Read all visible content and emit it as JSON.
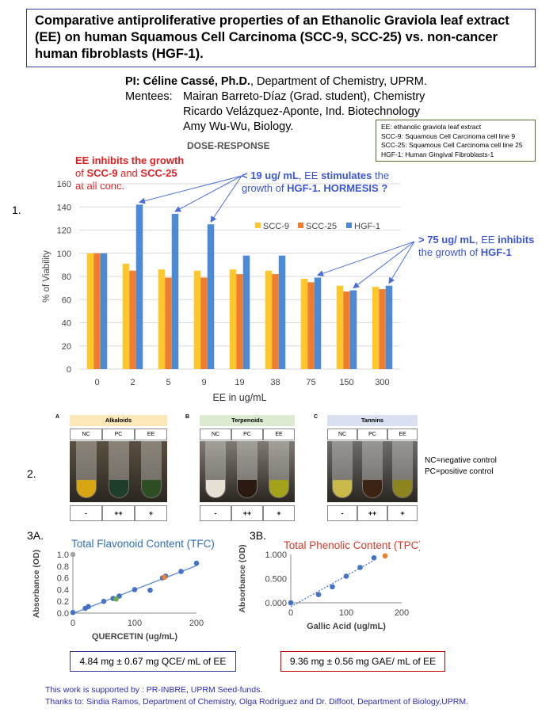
{
  "title": "Comparative antiproliferative properties of an Ethanolic Graviola leaf extract (EE) on human Squamous Cell Carcinoma (SCC-9, SCC-25) vs. non-cancer human fibroblasts (HGF-1).",
  "pi": {
    "label": "PI: Céline Cassé, Ph.D.",
    "dept": ", Department of Chemistry, UPRM.",
    "mentees_label": "Mentees:",
    "mentees": [
      "Mairan Barreto-Díaz (Grad. student), Chemistry",
      "Ricardo Velázquez-Aponte, Ind. Biotechnology",
      "Amy Wu-Wu, Biology."
    ]
  },
  "abbrev": [
    "EE: ethanolic graviola leaf extract",
    "SCC-9: Squamous Cell Carcinoma cell line 9",
    "SCC-25: Squamous Cell Carcinoma cell line 25",
    "HGF-1: Human Gingival Fibroblasts-1"
  ],
  "section1": {
    "num": "1.",
    "heading": "DOSE-RESPONSE",
    "note_red_1": "EE inhibits the growth",
    "note_red_2a": "of ",
    "note_red_2b": "SCC-9",
    "note_red_2c": " and ",
    "note_red_2d": "SCC-25",
    "note_red_3": "at all conc.",
    "note_blue_1a": "< 19 ug/ mL",
    "note_blue_1b": ", EE ",
    "note_blue_1c": "stimulates",
    "note_blue_1d": " the",
    "note_blue_2a": "growth of ",
    "note_blue_2b": "HGF-1",
    "note_blue_2c": ".   HORMESIS ?",
    "note_blue_3a": "> 75 ug/ mL",
    "note_blue_3b": ", EE ",
    "note_blue_3c": "inhibits",
    "note_blue_4a": "the growth of ",
    "note_blue_4b": "HGF-1"
  },
  "section2": {
    "num": "2.",
    "panels": [
      {
        "letter": "A",
        "name": "Alkaloids",
        "head_color": "#fbe7b8",
        "cols": [
          "NC",
          "PC",
          "EE"
        ],
        "results": [
          "-",
          "++",
          "+"
        ]
      },
      {
        "letter": "B",
        "name": "Terpenoids",
        "head_color": "#dcebd0",
        "cols": [
          "NC",
          "PC",
          "EE"
        ],
        "results": [
          "-",
          "++",
          "+"
        ]
      },
      {
        "letter": "C",
        "name": "Tannins",
        "head_color": "#d8e0f2",
        "cols": [
          "NC",
          "PC",
          "EE"
        ],
        "results": [
          "-",
          "++",
          "+"
        ]
      }
    ],
    "legend": [
      "NC=negative control",
      "PC=positive control"
    ]
  },
  "section3a": {
    "num": "3A.",
    "result": "4.84 mg ± 0.67 mg QCE/ mL of EE"
  },
  "section3b": {
    "num": "3B.",
    "result": "9.36 mg ± 0.56 mg GAE/ mL of EE"
  },
  "footer": [
    "This work is supported by : PR-INBRE, UPRM Seed-funds.",
    "Thanks to: Sindia Ramos, Department of Chemistry, Olga Rodríguez and Dr. Diffoot, Department of Biology,UPRM."
  ],
  "colors": {
    "scc9": "#ffc72c",
    "scc25": "#ee7d2f",
    "hgf1": "#4c8ad6",
    "tfc_title": "#2f6fb5",
    "tpc_title": "#d43a2a",
    "point": "#4472c4"
  },
  "chart_data": [
    {
      "type": "bar",
      "categories": [
        "0",
        "2",
        "5",
        "9",
        "19",
        "38",
        "75",
        "150",
        "300"
      ],
      "series": [
        {
          "name": "SCC-9",
          "values": [
            100,
            91,
            86,
            85,
            86,
            85,
            78,
            72,
            71
          ]
        },
        {
          "name": "SCC-25",
          "values": [
            100,
            85,
            79,
            79,
            82,
            82,
            75,
            67,
            69
          ]
        },
        {
          "name": "HGF-1",
          "values": [
            100,
            142,
            134,
            125,
            98,
            98,
            79,
            68,
            72
          ]
        }
      ],
      "xlabel": "EE in ug/mL",
      "ylabel": "% of Viability",
      "ylim": [
        0,
        160
      ],
      "yticks": [
        0,
        20,
        40,
        60,
        80,
        100,
        120,
        140,
        160
      ],
      "grid": true,
      "legend_position": "right"
    },
    {
      "type": "scatter",
      "title": "Total Flavonoid Content (TFC)",
      "xlabel": "QUERCETIN (ug/mL)",
      "ylabel": "Absorbance (OD)",
      "xlim": [
        0,
        200
      ],
      "ylim": [
        0,
        1.0
      ],
      "xticks": [
        0,
        100,
        200
      ],
      "yticks": [
        0.0,
        0.2,
        0.4,
        0.6,
        0.8,
        1.0
      ],
      "points": [
        [
          0,
          0.01
        ],
        [
          20,
          0.08
        ],
        [
          25,
          0.11
        ],
        [
          50,
          0.2
        ],
        [
          65,
          0.25
        ],
        [
          75,
          0.29
        ],
        [
          100,
          0.4
        ],
        [
          125,
          0.39
        ],
        [
          145,
          0.6
        ],
        [
          150,
          0.63
        ],
        [
          175,
          0.71
        ],
        [
          200,
          0.85
        ]
      ],
      "special_points": [
        {
          "x": 0,
          "y": 1.0,
          "color": "#a6a6a6"
        },
        {
          "x": 70,
          "y": 0.24,
          "color": "#70ad47"
        },
        {
          "x": 148,
          "y": 0.61,
          "color": "#ed7d31"
        }
      ]
    },
    {
      "type": "scatter",
      "title": "Total Phenolic Content (TPC)",
      "xlabel": "Gallic Acid (ug/mL)",
      "ylabel": "Absorbance (OD)",
      "xlim": [
        0,
        200
      ],
      "ylim": [
        0,
        1.0
      ],
      "xticks": [
        0,
        100,
        200
      ],
      "yticks": [
        0.0,
        0.5,
        1.0
      ],
      "ytick_labels": [
        "0.000",
        "0.500",
        "1.000"
      ],
      "points": [
        [
          0,
          0.0
        ],
        [
          50,
          0.17
        ],
        [
          75,
          0.33
        ],
        [
          100,
          0.55
        ],
        [
          125,
          0.73
        ],
        [
          150,
          0.93
        ]
      ],
      "special_points": [
        {
          "x": 170,
          "y": 0.97,
          "color": "#ed7d31"
        }
      ]
    }
  ]
}
